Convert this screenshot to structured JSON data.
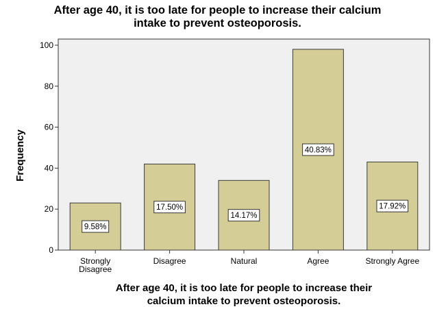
{
  "chart_data": {
    "type": "bar",
    "title": "After age 40, it is too late for people to increase their calcium intake to prevent osteoporosis.",
    "title_lines": [
      "After age 40, it is too late for people to increase their calcium",
      "intake to prevent osteoporosis."
    ],
    "xlabel": "After age 40, it is too late for people to increase their calcium intake to prevent osteoporosis.",
    "xlabel_lines": [
      "After age 40, it is too late for people to increase their",
      "calcium intake to prevent osteoporosis."
    ],
    "ylabel": "Frequency",
    "categories": [
      "Strongly Disagree",
      "Disagree",
      "Natural",
      "Agree",
      "Strongly Agree"
    ],
    "category_lines": [
      [
        "Strongly",
        "Disagree"
      ],
      [
        "Disagree"
      ],
      [
        "Natural"
      ],
      [
        "Agree"
      ],
      [
        "Strongly Agree"
      ]
    ],
    "values": [
      23,
      42,
      34,
      98,
      43
    ],
    "data_labels": [
      "9.58%",
      "17.50%",
      "14.17%",
      "40.83%",
      "17.92%"
    ],
    "ylim": [
      0,
      103
    ],
    "yticks": [
      0,
      20,
      40,
      60,
      80,
      100
    ],
    "grid": false,
    "colors": {
      "plot_background": "#f0f0f0",
      "bar_fill": "#d4cd96",
      "bar_stroke": "#3a3a3a",
      "label_box_fill": "#ffffff"
    }
  }
}
